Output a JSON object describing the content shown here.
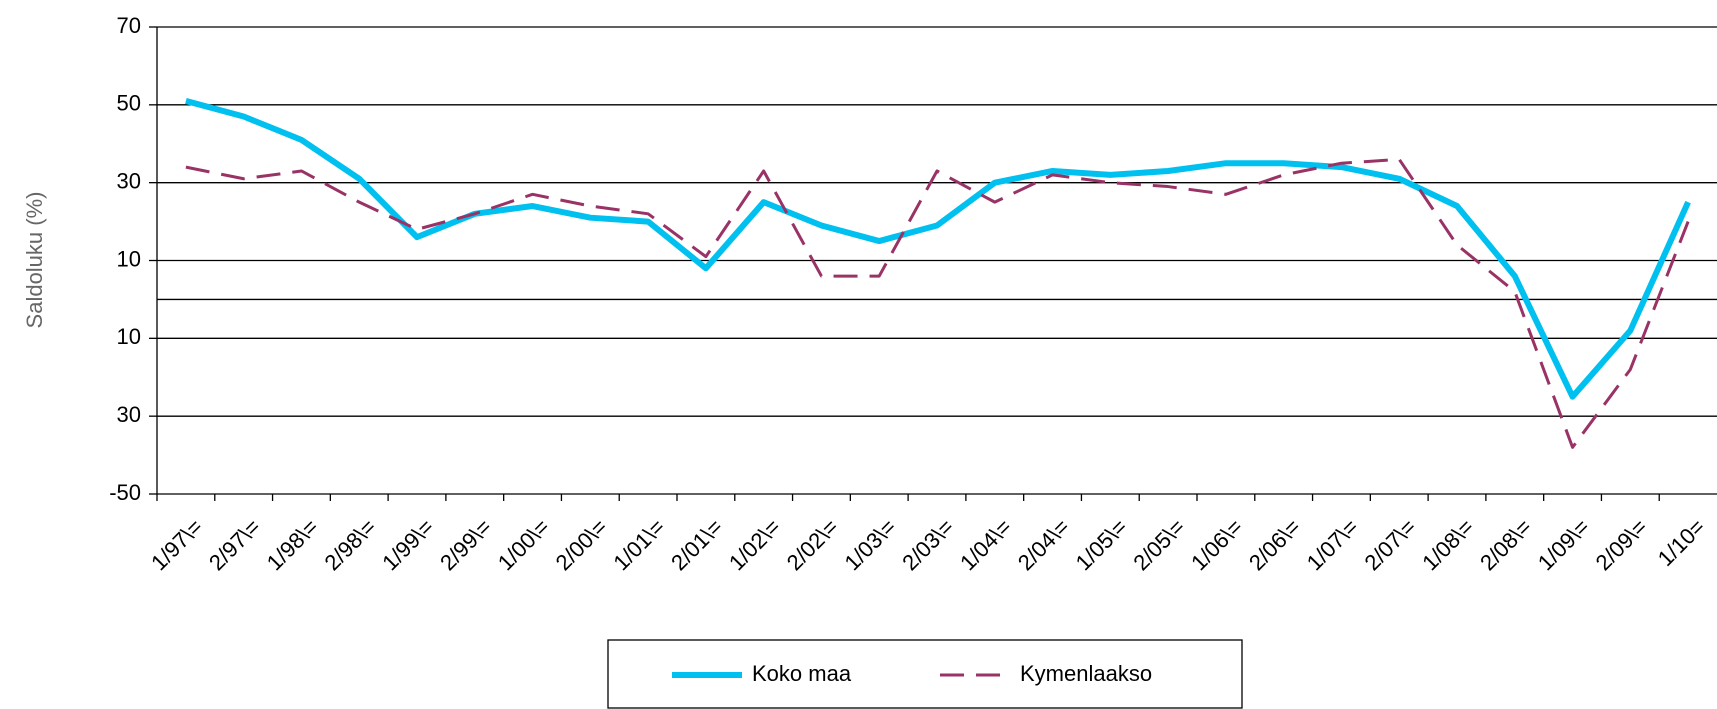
{
  "chart_data": {
    "type": "line",
    "y_label": "Saldoluku (%)",
    "categories": [
      "1/97\\=",
      "2/97\\=",
      "1/98\\=",
      "2/98\\=",
      "1/99\\=",
      "2/99\\=",
      "1/00\\=",
      "2/00\\=",
      "1/01\\=",
      "2/01\\=",
      "1/02\\=",
      "2/02\\=",
      "1/03\\=",
      "2/03\\=",
      "1/04\\=",
      "2/04\\=",
      "1/05\\=",
      "2/05\\=",
      "1/06\\=",
      "2/06\\=",
      "1/07\\=",
      "2/07\\=",
      "1/08\\=",
      "2/08\\=",
      "1/09\\=",
      "2/09\\=",
      "1/10="
    ],
    "series": [
      {
        "name": "Koko maa",
        "color": "#00c0f0",
        "dash": false,
        "values": [
          51,
          47,
          41,
          31,
          16,
          22,
          24,
          21,
          20,
          8,
          25,
          19,
          15,
          19,
          30,
          33,
          32,
          33,
          35,
          35,
          34,
          31,
          24,
          6,
          -25,
          -8,
          25
        ]
      },
      {
        "name": "Kymenlaakso",
        "color": "#993366",
        "dash": true,
        "values": [
          34,
          31,
          33,
          25,
          18,
          22,
          27,
          24,
          22,
          11,
          33,
          6,
          6,
          33,
          25,
          32,
          30,
          29,
          27,
          32,
          35,
          36,
          14,
          2,
          -38,
          -18,
          20
        ]
      }
    ],
    "ylim": [
      -50,
      70
    ],
    "yticks": [
      70,
      50,
      30,
      10,
      {
        "value": -10,
        "label": "10"
      },
      {
        "value": -30,
        "label": "30"
      },
      -50
    ],
    "hline": 0,
    "grid": true,
    "legend": "bottom"
  }
}
